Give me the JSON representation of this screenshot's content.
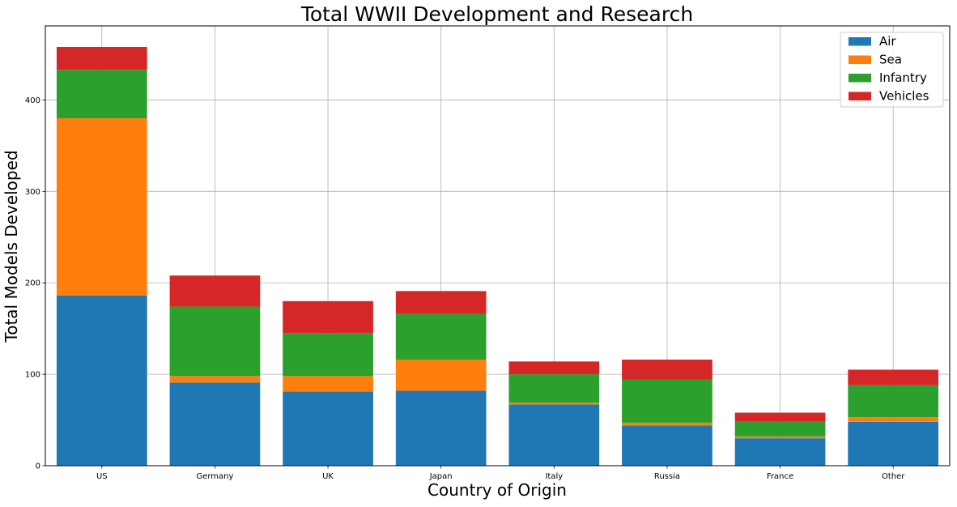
{
  "chart_data": {
    "type": "bar",
    "stacked": true,
    "title": "Total WWII Development and Research",
    "xlabel": "Country of Origin",
    "ylabel": "Total Models Developed",
    "categories": [
      "US",
      "Germany",
      "UK",
      "Japan",
      "Italy",
      "Russia",
      "France",
      "Other"
    ],
    "series": [
      {
        "name": "Air",
        "color": "#1f77b4",
        "values": [
          186,
          91,
          81,
          82,
          67,
          44,
          30,
          48
        ]
      },
      {
        "name": "Sea",
        "color": "#ff7f0e",
        "values": [
          194,
          7,
          17,
          34,
          2,
          3,
          2,
          5
        ]
      },
      {
        "name": "Infantry",
        "color": "#2ca02c",
        "values": [
          53,
          76,
          47,
          50,
          31,
          47,
          16,
          35
        ]
      },
      {
        "name": "Vehicles",
        "color": "#d62728",
        "values": [
          25,
          34,
          35,
          25,
          14,
          22,
          10,
          17
        ]
      }
    ],
    "ylim": [
      0,
      481
    ],
    "yticks": [
      0,
      100,
      200,
      300,
      400
    ],
    "grid": true,
    "legend_position": "top-right"
  }
}
